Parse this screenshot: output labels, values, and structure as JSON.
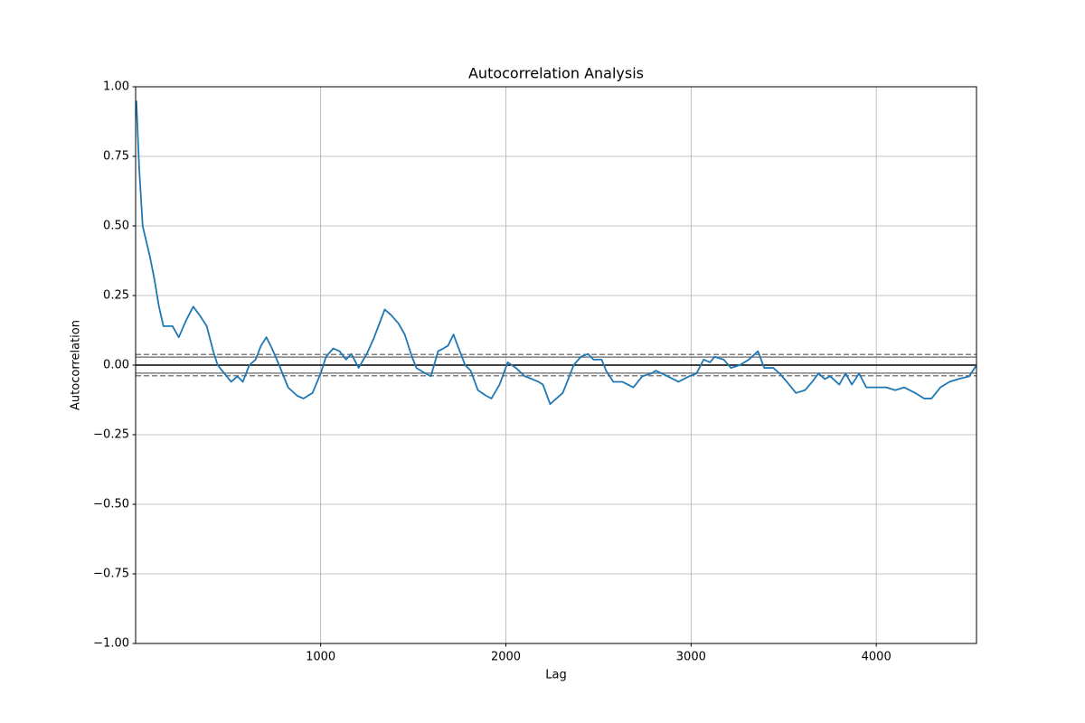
{
  "chart_data": {
    "type": "line",
    "title": "Autocorrelation Analysis",
    "x_label": "Lag",
    "y_label": "Autocorrelation",
    "color": "#1f77b4",
    "grid": true,
    "xlim": [
      1,
      4541
    ],
    "xticks": [
      1000,
      2000,
      3000,
      4000
    ],
    "ylim": [
      -1,
      1
    ],
    "yticks": [
      {
        "value": -1,
        "label": "−1.00"
      },
      {
        "value": -0.75,
        "label": "−0.75"
      },
      {
        "value": -0.5,
        "label": "−0.50"
      },
      {
        "value": -0.25,
        "label": "−0.25"
      },
      {
        "value": 0,
        "label": "0.00"
      },
      {
        "value": 0.25,
        "label": "0.25"
      },
      {
        "value": 0.5,
        "label": "0.50"
      },
      {
        "value": 0.75,
        "label": "0.75"
      },
      {
        "value": 1,
        "label": "1.00"
      }
    ],
    "reference_lines": [
      {
        "value": 0.038,
        "color": "grey",
        "dashed": true
      },
      {
        "value": 0.029,
        "color": "grey",
        "dashed": false
      },
      {
        "value": 0,
        "color": "black",
        "dashed": false
      },
      {
        "value": -0.029,
        "color": "grey",
        "dashed": false
      },
      {
        "value": -0.038,
        "color": "grey",
        "dashed": true
      }
    ],
    "x": [
      5,
      20,
      39,
      78,
      102,
      127,
      151,
      176,
      200,
      234,
      273,
      312,
      346,
      385,
      420,
      444,
      468,
      517,
      551,
      580,
      615,
      649,
      678,
      707,
      737,
      776,
      824,
      873,
      907,
      956,
      1000,
      1029,
      1068,
      1102,
      1137,
      1166,
      1205,
      1249,
      1283,
      1312,
      1346,
      1380,
      1420,
      1454,
      1493,
      1517,
      1566,
      1595,
      1634,
      1663,
      1688,
      1717,
      1751,
      1780,
      1810,
      1849,
      1893,
      1922,
      1966,
      2010,
      2054,
      2102,
      2141,
      2176,
      2200,
      2239,
      2273,
      2307,
      2337,
      2366,
      2405,
      2444,
      2473,
      2517,
      2541,
      2580,
      2629,
      2688,
      2737,
      2785,
      2810,
      2873,
      2932,
      2990,
      3029,
      3068,
      3102,
      3127,
      3176,
      3215,
      3263,
      3312,
      3361,
      3395,
      3444,
      3478,
      3517,
      3566,
      3615,
      3654,
      3688,
      3722,
      3751,
      3800,
      3834,
      3868,
      3907,
      3946,
      4005,
      4054,
      4102,
      4151,
      4210,
      4259,
      4298,
      4346,
      4395,
      4444,
      4502,
      4541
    ],
    "values": [
      0.95,
      0.71,
      0.5,
      0.39,
      0.31,
      0.21,
      0.14,
      0.14,
      0.14,
      0.1,
      0.16,
      0.21,
      0.18,
      0.14,
      0.05,
      0,
      -0.02,
      -0.06,
      -0.04,
      -0.06,
      0,
      0.02,
      0.07,
      0.1,
      0.06,
      0,
      -0.08,
      -0.11,
      -0.12,
      -0.1,
      -0.03,
      0.03,
      0.06,
      0.05,
      0.02,
      0.04,
      -0.01,
      0.04,
      0.09,
      0.14,
      0.2,
      0.18,
      0.15,
      0.11,
      0.03,
      -0.01,
      -0.03,
      -0.04,
      0.05,
      0.06,
      0.07,
      0.11,
      0.05,
      0,
      -0.02,
      -0.09,
      -0.11,
      -0.12,
      -0.07,
      0.01,
      -0.01,
      -0.04,
      -0.05,
      -0.06,
      -0.07,
      -0.14,
      -0.12,
      -0.1,
      -0.05,
      0,
      0.03,
      0.04,
      0.02,
      0.02,
      -0.02,
      -0.06,
      -0.06,
      -0.08,
      -0.04,
      -0.03,
      -0.02,
      -0.04,
      -0.06,
      -0.04,
      -0.03,
      0.02,
      0.01,
      0.03,
      0.02,
      -0.01,
      0,
      0.02,
      0.05,
      -0.01,
      -0.01,
      -0.03,
      -0.06,
      -0.1,
      -0.09,
      -0.06,
      -0.03,
      -0.05,
      -0.04,
      -0.07,
      -0.03,
      -0.07,
      -0.03,
      -0.08,
      -0.08,
      -0.08,
      -0.09,
      -0.08,
      -0.1,
      -0.12,
      -0.12,
      -0.08,
      -0.06,
      -0.05,
      -0.04,
      0
    ]
  }
}
